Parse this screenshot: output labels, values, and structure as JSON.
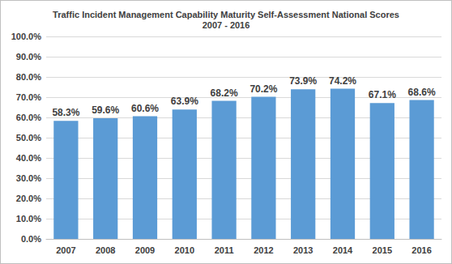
{
  "chart_data": {
    "type": "bar",
    "title": "Traffic Incident Management Capability Maturity Self-Assessment National Scores",
    "subtitle": "2007 - 2016",
    "categories": [
      "2007",
      "2008",
      "2009",
      "2010",
      "2011",
      "2012",
      "2013",
      "2014",
      "2015",
      "2016"
    ],
    "values": [
      58.3,
      59.6,
      60.6,
      63.9,
      68.2,
      70.2,
      73.9,
      74.2,
      67.1,
      68.6
    ],
    "value_labels": [
      "58.3%",
      "59.6%",
      "60.6%",
      "63.9%",
      "68.2%",
      "70.2%",
      "73.9%",
      "74.2%",
      "67.1%",
      "68.6%"
    ],
    "color": "#5b9bd5",
    "ylim": [
      0,
      100
    ],
    "yticks": [
      {
        "value": 0,
        "label": "0.0%"
      },
      {
        "value": 10,
        "label": "10.0%"
      },
      {
        "value": 20,
        "label": "20.0%"
      },
      {
        "value": 30,
        "label": "30.0%"
      },
      {
        "value": 40,
        "label": "40.0%"
      },
      {
        "value": 50,
        "label": "50.0%"
      },
      {
        "value": 60,
        "label": "60.0%"
      },
      {
        "value": 70,
        "label": "70.0%"
      },
      {
        "value": 80,
        "label": "80.0%"
      },
      {
        "value": 90,
        "label": "90.0%"
      },
      {
        "value": 100,
        "label": "100.0%"
      }
    ],
    "grid": true,
    "data_labels": true
  }
}
